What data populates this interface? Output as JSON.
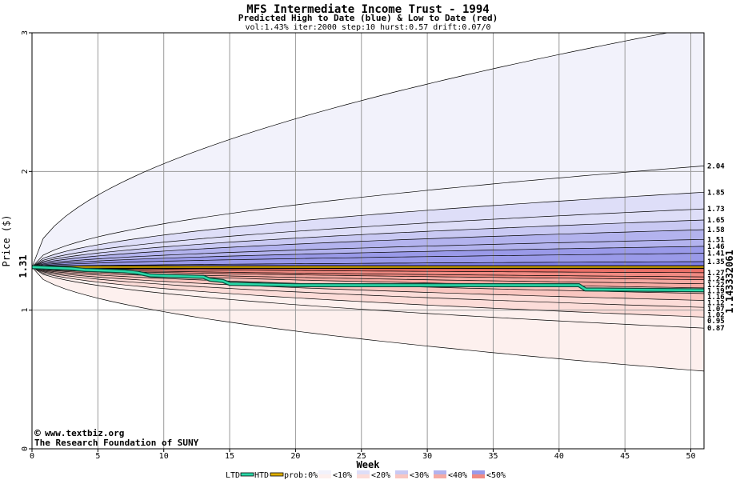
{
  "chart_data": {
    "type": "area",
    "title": "MFS Intermediate Income Trust - 1994",
    "subtitle": "Predicted High to Date (blue) &  Low to Date (red)",
    "params": "vol:1.43% iter:2000 step:10 hurst:0.57 drift:0.07/0",
    "xlabel": "Week",
    "ylabel": "Price ($)",
    "xlim": [
      0,
      51
    ],
    "ylim": [
      0,
      3
    ],
    "x_ticks": [
      0,
      5,
      10,
      15,
      20,
      25,
      30,
      35,
      40,
      45,
      50
    ],
    "y_ticks": [
      0,
      1,
      2,
      3
    ],
    "grid": true,
    "start_price": 1.31,
    "start_price_label": "1.31",
    "current_price_label": "1.143332061",
    "current_price": 1.143,
    "htd_upper_bands": [
      1.85,
      1.73,
      1.65,
      1.58,
      1.51,
      1.46,
      1.41,
      1.35
    ],
    "ltd_lower_bands": [
      1.27,
      1.24,
      1.22,
      1.19,
      1.16,
      1.12,
      1.07,
      1.02,
      0.95,
      0.87
    ],
    "outer_upper_end": 3.05,
    "outer_upper_label": "2.04",
    "outer_upper_label_value": 2.04,
    "outer_lower_end": 0.56,
    "right_labels": [
      "2.04",
      "1.85",
      "1.73",
      "1.65",
      "1.58",
      "1.51",
      "1.46",
      "1.41",
      "1.35",
      "1.27",
      "1.24",
      "1.22",
      "1.19",
      "1.16",
      "1.12",
      "1.07",
      "1.02",
      "0.95",
      "0.87"
    ],
    "ltd_series": [
      [
        0,
        1.31
      ],
      [
        3,
        1.3
      ],
      [
        4,
        1.29
      ],
      [
        7,
        1.28
      ],
      [
        8,
        1.27
      ],
      [
        9,
        1.25
      ],
      [
        13,
        1.24
      ],
      [
        13.5,
        1.22
      ],
      [
        14.5,
        1.21
      ],
      [
        15,
        1.19
      ],
      [
        20,
        1.18
      ],
      [
        41.5,
        1.18
      ],
      [
        42,
        1.15
      ],
      [
        51,
        1.143
      ]
    ],
    "htd_series": [
      [
        0,
        1.31
      ],
      [
        51,
        1.31
      ]
    ],
    "legend": {
      "ltd": "LTD",
      "htd": "HTD",
      "prob_prefix": "prob:0%",
      "items": [
        "<10%",
        "<20%",
        "<30%",
        "<40%",
        "<50%"
      ]
    },
    "colors": {
      "htd_line": "#2ad9a8",
      "ltd_line": "#0a8a6a",
      "level_line": "#e0b000",
      "blue_bands": [
        "#f2f2fb",
        "#dedef8",
        "#c9c9f3",
        "#b3b3ee",
        "#9a9ae9",
        "#7f7fe3"
      ],
      "red_bands": [
        "#fdf0ee",
        "#fcdcd8",
        "#f9c6c0",
        "#f5aaa3",
        "#f08a82",
        "#ec7068"
      ],
      "current_label": "#0a8a6a",
      "start_label": "#0a6a0a",
      "brand": "#000080"
    }
  },
  "credit": {
    "site": "www.textbiz.org",
    "org": "The Research Foundation of SUNY",
    "copyright_symbol": "©"
  }
}
